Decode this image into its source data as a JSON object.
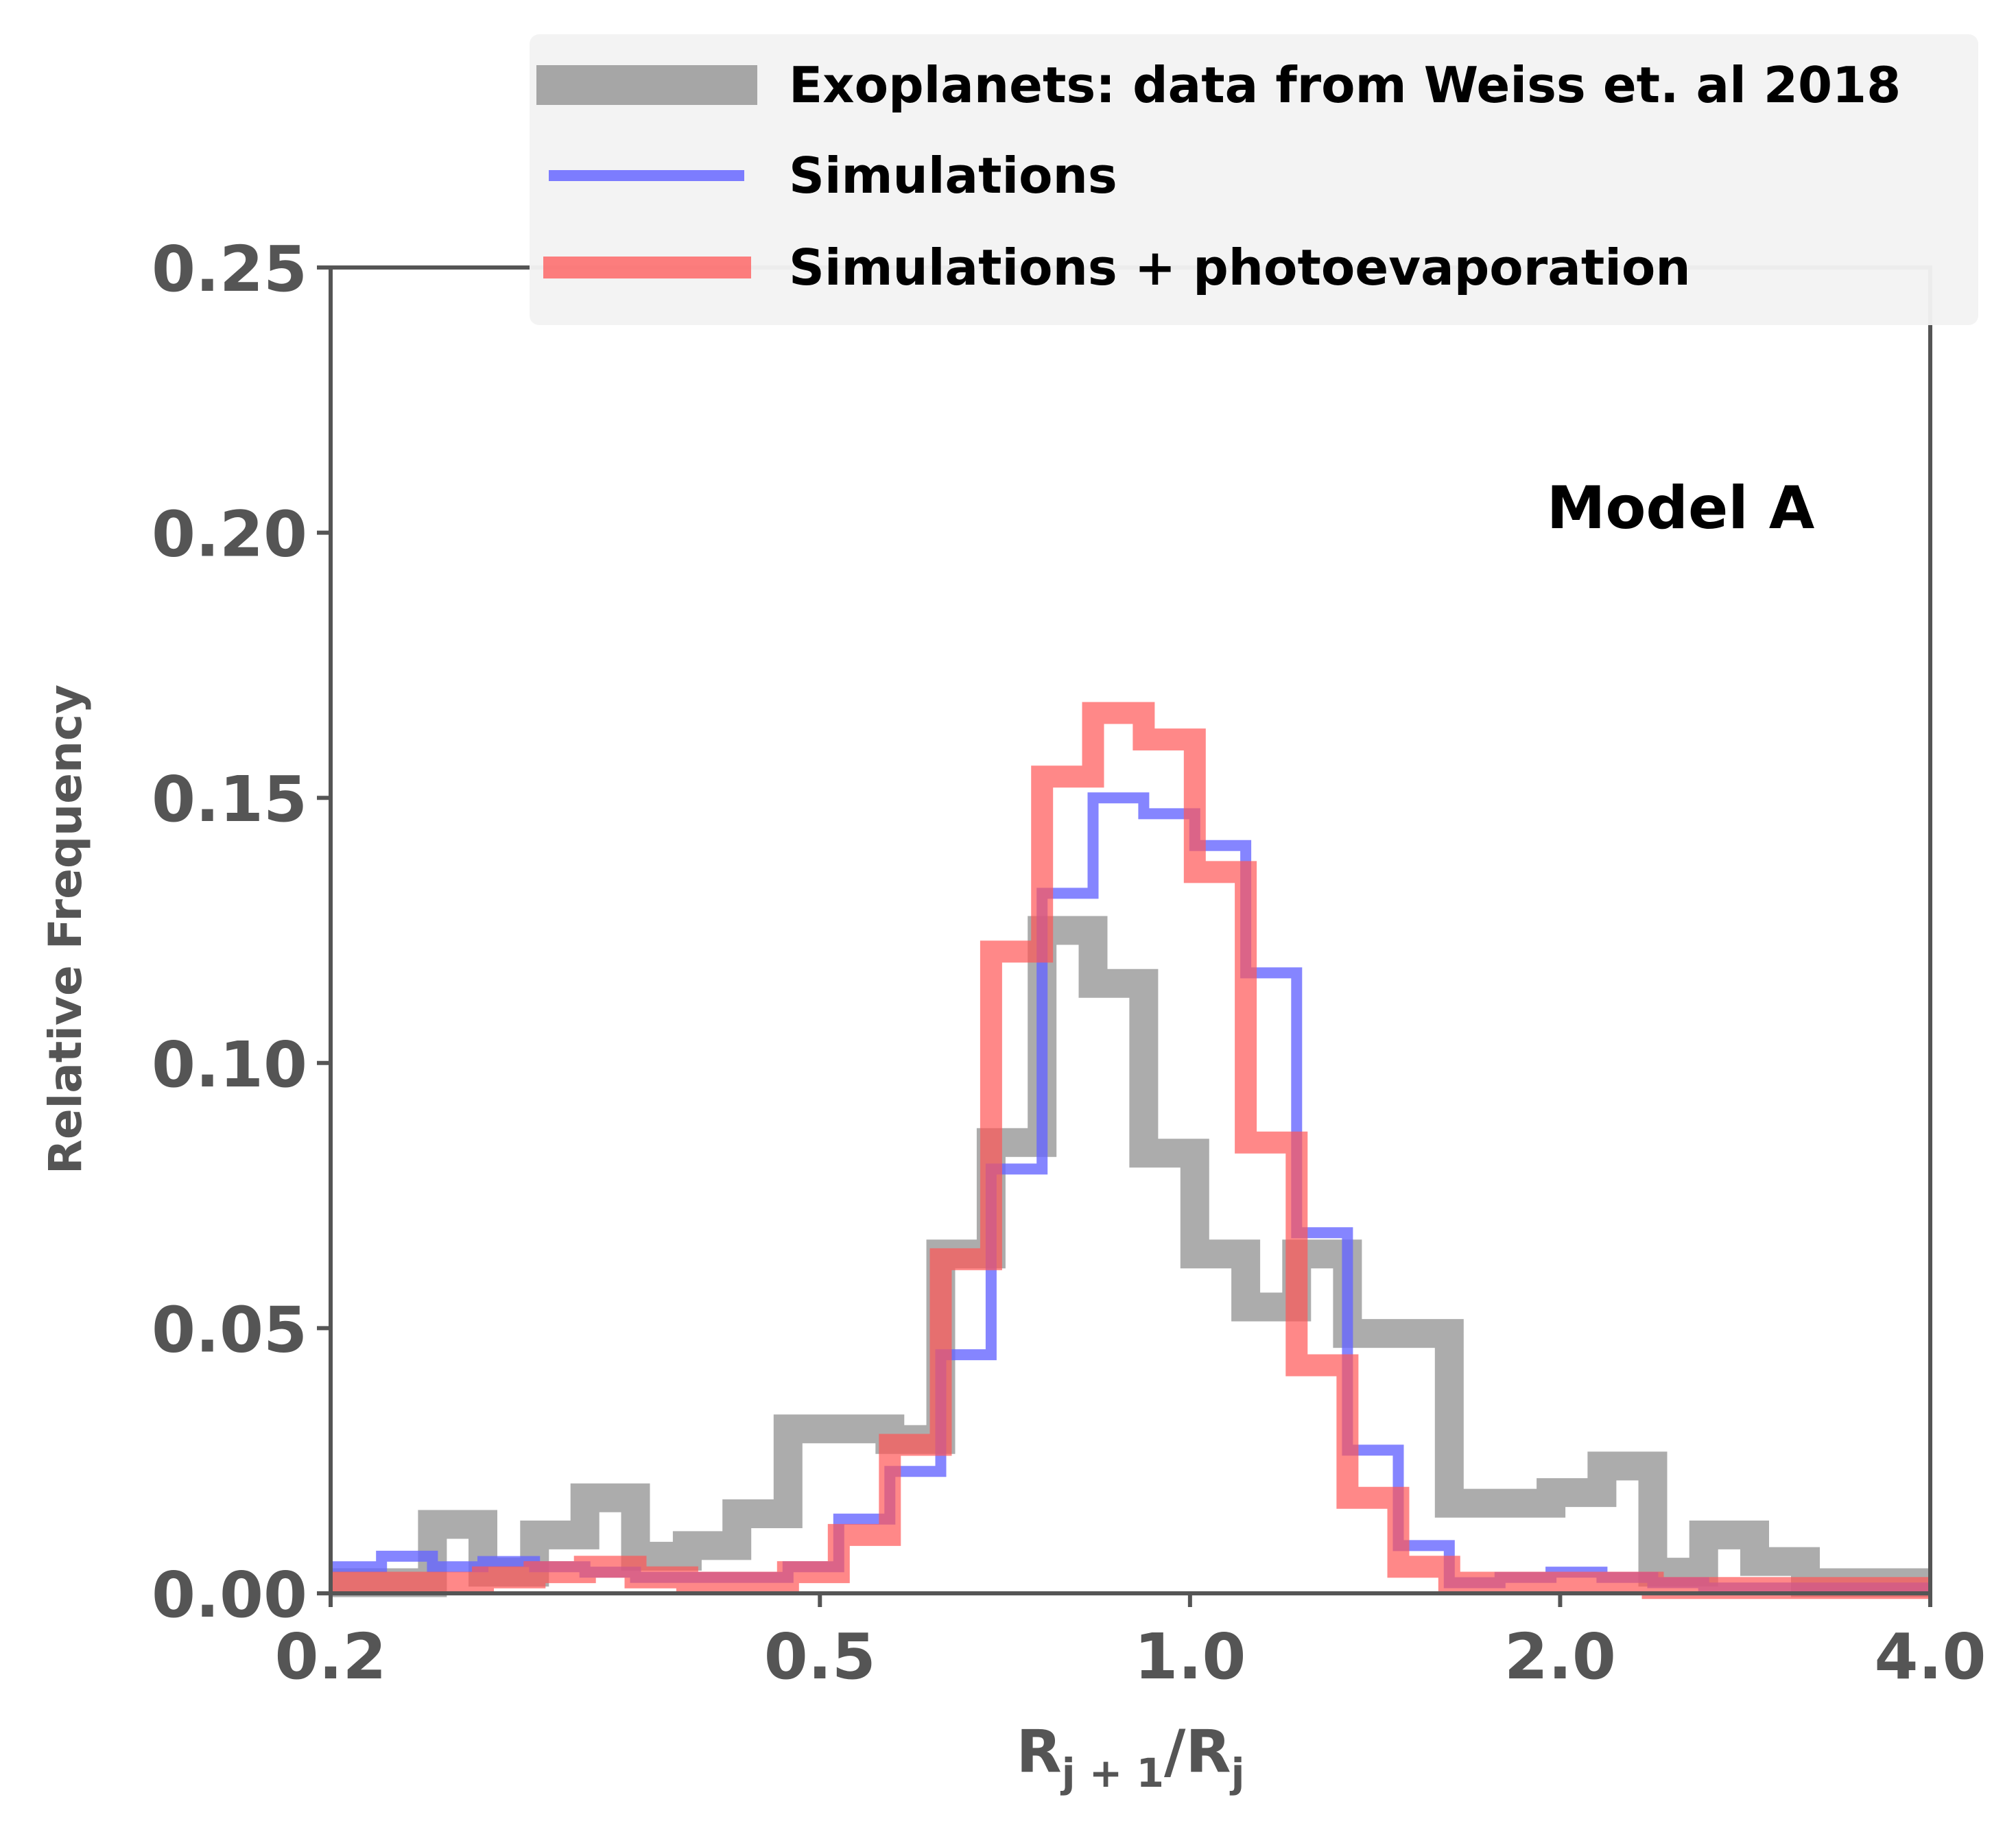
{
  "chart_data": {
    "type": "histogram",
    "xscale": "log",
    "xlim": [
      0.2,
      4.0
    ],
    "ylim": [
      0,
      0.25
    ],
    "xticks": [
      0.2,
      0.5,
      1.0,
      2.0,
      4.0
    ],
    "xtick_labels": [
      "0.2",
      "0.5",
      "1.0",
      "2.0",
      "4.0"
    ],
    "yticks": [
      0.0,
      0.05,
      0.1,
      0.15,
      0.2,
      0.25
    ],
    "ytick_labels": [
      "0.00",
      "0.05",
      "0.10",
      "0.15",
      "0.20",
      "0.25"
    ],
    "xlabel": "R",
    "xlabel_sub1": "j + 1",
    "xlabel_sep": "/R",
    "xlabel_sub2": "j",
    "ylabel": "Relative Frequency",
    "annotation": "Model A",
    "legend_position": "top-right",
    "grid": false,
    "bin_edges": [
      0.2,
      0.22,
      0.242,
      0.266,
      0.293,
      0.322,
      0.354,
      0.39,
      0.428,
      0.471,
      0.518,
      0.57,
      0.627,
      0.689,
      0.758,
      0.834,
      0.917,
      1.009,
      1.11,
      1.221,
      1.343,
      1.477,
      1.625,
      1.787,
      1.966,
      2.163,
      2.379,
      2.617,
      2.879,
      3.166,
      3.483,
      3.832,
      4.0
    ],
    "series": [
      {
        "name": "Exoplanets: data from Weiss et. al 2018",
        "color": "#8c8c8c",
        "values": [
          0.002,
          0.002,
          0.013,
          0.004,
          0.011,
          0.018,
          0.007,
          0.009,
          0.015,
          0.031,
          0.031,
          0.029,
          0.064,
          0.085,
          0.125,
          0.115,
          0.083,
          0.064,
          0.054,
          0.064,
          0.049,
          0.049,
          0.017,
          0.017,
          0.019,
          0.024,
          0.004,
          0.011,
          0.006,
          0.002,
          0.002,
          0.002
        ]
      },
      {
        "name": "Simulations",
        "color": "#6666ff",
        "values": [
          0.005,
          0.007,
          0.005,
          0.006,
          0.005,
          0.004,
          0.003,
          0.003,
          0.003,
          0.005,
          0.014,
          0.023,
          0.045,
          0.08,
          0.132,
          0.15,
          0.147,
          0.141,
          0.117,
          0.068,
          0.027,
          0.009,
          0.002,
          0.003,
          0.004,
          0.003,
          0.002,
          0.001,
          0.001,
          0.001,
          0.001,
          0.001
        ]
      },
      {
        "name": "Simulations + photoevaporation",
        "color": "#ff5555",
        "values": [
          0.002,
          0.002,
          0.002,
          0.003,
          0.004,
          0.005,
          0.003,
          0.002,
          0.002,
          0.004,
          0.011,
          0.028,
          0.063,
          0.121,
          0.154,
          0.166,
          0.161,
          0.136,
          0.085,
          0.043,
          0.018,
          0.005,
          0.002,
          0.002,
          0.002,
          0.002,
          0.001,
          0.001,
          0.001,
          0.001,
          0.001,
          0.001
        ]
      }
    ]
  }
}
